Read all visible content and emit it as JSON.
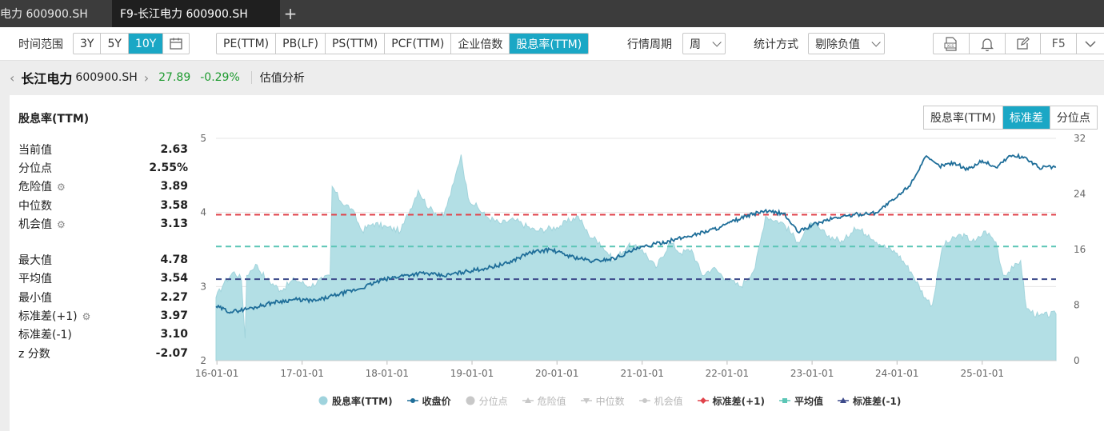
{
  "tabs": [
    {
      "label": "电力 600900.SH"
    },
    {
      "label": "F9-长江电力 600900.SH"
    }
  ],
  "toolbar": {
    "time_range_label": "时间范围",
    "time_ranges": [
      "3Y",
      "5Y",
      "10Y"
    ],
    "time_range_active": "10Y",
    "metrics": [
      "PE(TTM)",
      "PB(LF)",
      "PS(TTM)",
      "PCF(TTM)",
      "企业倍数",
      "股息率(TTM)"
    ],
    "metric_active": "股息率(TTM)",
    "period_label": "行情周期",
    "period_value": "周",
    "stat_label": "统计方式",
    "stat_value": "剔除负值",
    "f5_label": "F5",
    "xls_label": "XLS"
  },
  "stock": {
    "name": "长江电力",
    "code": "600900.SH",
    "price": "27.89",
    "change": "-0.29%",
    "page": "估值分析"
  },
  "panel": {
    "title": "股息率(TTM)",
    "stats_a": [
      {
        "label": "当前值",
        "value": "2.63",
        "gear": false
      },
      {
        "label": "分位点",
        "value": "2.55%",
        "gear": false
      },
      {
        "label": "危险值",
        "value": "3.89",
        "gear": true
      },
      {
        "label": "中位数",
        "value": "3.58",
        "gear": false
      },
      {
        "label": "机会值",
        "value": "3.13",
        "gear": true
      }
    ],
    "stats_b": [
      {
        "label": "最大值",
        "value": "4.78",
        "gear": false
      },
      {
        "label": "平均值",
        "value": "3.54",
        "gear": false
      },
      {
        "label": "最小值",
        "value": "2.27",
        "gear": false
      },
      {
        "label": "标准差(+1)",
        "value": "3.97",
        "gear": true
      },
      {
        "label": "标准差(-1)",
        "value": "3.10",
        "gear": false
      },
      {
        "label": "z 分数",
        "value": "-2.07",
        "gear": false
      }
    ],
    "view_toggle": [
      "股息率(TTM)",
      "标准差",
      "分位点"
    ],
    "view_active": "标准差"
  },
  "colors": {
    "accent": "#1aa7c5",
    "area": "#b3dfe5",
    "price_line": "#1f6e99",
    "std_plus": "#e0434b",
    "mean": "#5cc6b6",
    "std_minus": "#3d4a8a",
    "up_down": "#1c9a2e"
  },
  "chart_data": {
    "type": "area",
    "x_ticks": [
      "16-01-01",
      "17-01-01",
      "18-01-01",
      "19-01-01",
      "20-01-01",
      "21-01-01",
      "22-01-01",
      "23-01-01",
      "24-01-01",
      "25-01-01"
    ],
    "x_range": [
      "2015-12-28",
      "2025-11-14"
    ],
    "y_left_ticks": [
      "2",
      "3",
      "4",
      "5"
    ],
    "y_left_range": [
      2,
      5
    ],
    "y_right_ticks": [
      "0",
      "8",
      "16",
      "24",
      "32"
    ],
    "y_right_range": [
      0,
      32
    ],
    "reference_lines": {
      "std_plus": 3.97,
      "mean": 3.54,
      "std_minus": 3.1
    },
    "series": [
      {
        "name": "股息率(TTM)",
        "axis": "left",
        "points": [
          [
            "2015-12-28",
            2.85
          ],
          [
            "2016-02-01",
            3.05
          ],
          [
            "2016-03-15",
            3.2
          ],
          [
            "2016-04-15",
            3.1
          ],
          [
            "2016-05-01",
            2.3
          ],
          [
            "2016-05-08",
            3.15
          ],
          [
            "2016-06-15",
            3.3
          ],
          [
            "2016-08-01",
            3.1
          ],
          [
            "2016-10-01",
            2.95
          ],
          [
            "2016-12-01",
            3.1
          ],
          [
            "2017-02-01",
            3.0
          ],
          [
            "2017-04-01",
            3.1
          ],
          [
            "2017-05-01",
            3.15
          ],
          [
            "2017-05-10",
            4.35
          ],
          [
            "2017-06-15",
            4.15
          ],
          [
            "2017-08-01",
            4.05
          ],
          [
            "2017-09-15",
            3.75
          ],
          [
            "2017-11-01",
            3.85
          ],
          [
            "2018-01-01",
            3.8
          ],
          [
            "2018-03-01",
            3.75
          ],
          [
            "2018-05-15",
            4.3
          ],
          [
            "2018-07-01",
            4.05
          ],
          [
            "2018-09-01",
            3.95
          ],
          [
            "2018-10-15",
            4.4
          ],
          [
            "2018-11-15",
            4.78
          ],
          [
            "2018-12-15",
            4.2
          ],
          [
            "2019-03-01",
            3.95
          ],
          [
            "2019-05-01",
            3.85
          ],
          [
            "2019-07-01",
            3.9
          ],
          [
            "2019-10-01",
            3.75
          ],
          [
            "2020-01-01",
            3.8
          ],
          [
            "2020-04-01",
            3.95
          ],
          [
            "2020-05-15",
            3.7
          ],
          [
            "2020-07-01",
            3.6
          ],
          [
            "2020-09-01",
            3.35
          ],
          [
            "2020-11-01",
            3.55
          ],
          [
            "2021-01-01",
            3.5
          ],
          [
            "2021-03-01",
            3.25
          ],
          [
            "2021-05-01",
            3.6
          ],
          [
            "2021-06-15",
            3.45
          ],
          [
            "2021-08-01",
            3.5
          ],
          [
            "2021-09-15",
            3.15
          ],
          [
            "2021-11-01",
            3.25
          ],
          [
            "2022-01-01",
            3.1
          ],
          [
            "2022-03-01",
            3.0
          ],
          [
            "2022-05-01",
            3.25
          ],
          [
            "2022-06-15",
            3.95
          ],
          [
            "2022-09-01",
            3.85
          ],
          [
            "2022-11-01",
            3.6
          ],
          [
            "2023-01-01",
            3.85
          ],
          [
            "2023-03-01",
            3.7
          ],
          [
            "2023-05-15",
            3.6
          ],
          [
            "2023-07-01",
            3.8
          ],
          [
            "2023-09-01",
            3.7
          ],
          [
            "2023-11-01",
            3.55
          ],
          [
            "2024-01-01",
            3.45
          ],
          [
            "2024-03-01",
            3.2
          ],
          [
            "2024-05-01",
            2.85
          ],
          [
            "2024-06-01",
            2.75
          ],
          [
            "2024-07-15",
            3.55
          ],
          [
            "2024-10-01",
            3.7
          ],
          [
            "2024-12-01",
            3.6
          ],
          [
            "2025-01-15",
            3.75
          ],
          [
            "2025-03-01",
            3.6
          ],
          [
            "2025-04-01",
            3.15
          ],
          [
            "2025-05-15",
            3.25
          ],
          [
            "2025-06-15",
            3.35
          ],
          [
            "2025-07-10",
            2.7
          ],
          [
            "2025-09-01",
            2.6
          ],
          [
            "2025-11-14",
            2.63
          ]
        ]
      },
      {
        "name": "收盘价",
        "axis": "right",
        "points": [
          [
            "2015-12-28",
            7.8
          ],
          [
            "2016-03-01",
            7.0
          ],
          [
            "2016-06-01",
            7.6
          ],
          [
            "2016-09-01",
            8.4
          ],
          [
            "2016-12-01",
            8.8
          ],
          [
            "2017-03-01",
            8.6
          ],
          [
            "2017-06-01",
            9.5
          ],
          [
            "2017-09-01",
            10.3
          ],
          [
            "2017-12-01",
            11.5
          ],
          [
            "2018-03-01",
            12.2
          ],
          [
            "2018-06-01",
            12.6
          ],
          [
            "2018-09-01",
            12.2
          ],
          [
            "2018-12-01",
            12.8
          ],
          [
            "2019-03-01",
            13.3
          ],
          [
            "2019-06-01",
            14.0
          ],
          [
            "2019-09-01",
            15.5
          ],
          [
            "2019-12-01",
            16.0
          ],
          [
            "2020-03-01",
            15.0
          ],
          [
            "2020-06-01",
            14.3
          ],
          [
            "2020-09-01",
            14.7
          ],
          [
            "2020-12-01",
            16.0
          ],
          [
            "2021-03-01",
            16.8
          ],
          [
            "2021-06-01",
            17.5
          ],
          [
            "2021-09-01",
            18.3
          ],
          [
            "2021-12-01",
            19.2
          ],
          [
            "2022-03-01",
            20.5
          ],
          [
            "2022-06-01",
            21.5
          ],
          [
            "2022-09-01",
            21.2
          ],
          [
            "2022-11-01",
            18.5
          ],
          [
            "2023-01-01",
            19.5
          ],
          [
            "2023-04-01",
            20.5
          ],
          [
            "2023-07-01",
            21.0
          ],
          [
            "2023-10-01",
            21.3
          ],
          [
            "2024-01-01",
            23.5
          ],
          [
            "2024-03-01",
            25.5
          ],
          [
            "2024-05-01",
            29.3
          ],
          [
            "2024-07-01",
            28.0
          ],
          [
            "2024-09-01",
            28.5
          ],
          [
            "2024-11-01",
            27.5
          ],
          [
            "2025-01-01",
            28.8
          ],
          [
            "2025-03-01",
            27.8
          ],
          [
            "2025-05-01",
            29.5
          ],
          [
            "2025-07-01",
            29.3
          ],
          [
            "2025-09-01",
            27.8
          ],
          [
            "2025-11-14",
            27.89
          ]
        ]
      }
    ],
    "legend": [
      {
        "label": "股息率(TTM)",
        "shape": "dot",
        "color": "#9fd3dd",
        "on": true
      },
      {
        "label": "收盘价",
        "shape": "line-dot",
        "color": "#1f6e99",
        "on": true
      },
      {
        "label": "分位点",
        "shape": "dot",
        "color": "#c8c8c8",
        "on": false
      },
      {
        "label": "危险值",
        "shape": "line-tri",
        "color": "#c8c8c8",
        "on": false
      },
      {
        "label": "中位数",
        "shape": "line-tri-down",
        "color": "#c8c8c8",
        "on": false
      },
      {
        "label": "机会值",
        "shape": "line-dot",
        "color": "#c8c8c8",
        "on": false
      },
      {
        "label": "标准差(+1)",
        "shape": "line-diamond",
        "color": "#e0434b",
        "on": true
      },
      {
        "label": "平均值",
        "shape": "line-square",
        "color": "#5cc6b6",
        "on": true
      },
      {
        "label": "标准差(-1)",
        "shape": "line-tri",
        "color": "#3d4a8a",
        "on": true
      }
    ]
  }
}
